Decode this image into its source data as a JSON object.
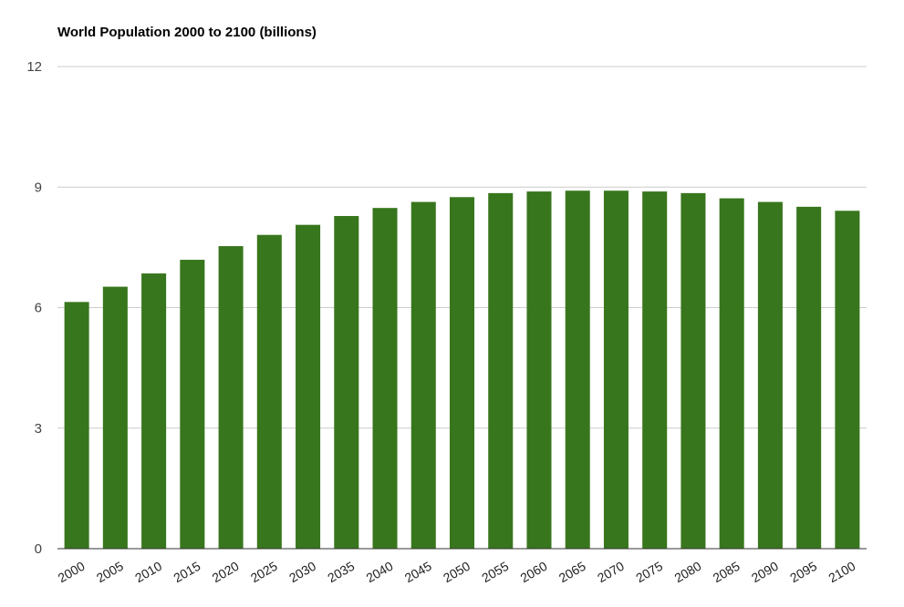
{
  "chart_data": {
    "type": "bar",
    "title": "World Population 2000 to 2100 (billions)",
    "xlabel": "",
    "ylabel": "",
    "categories": [
      "2000",
      "2005",
      "2010",
      "2015",
      "2020",
      "2025",
      "2030",
      "2035",
      "2040",
      "2045",
      "2050",
      "2055",
      "2060",
      "2065",
      "2070",
      "2075",
      "2080",
      "2085",
      "2090",
      "2095",
      "2100"
    ],
    "values": [
      6.14,
      6.52,
      6.85,
      7.19,
      7.53,
      7.81,
      8.06,
      8.28,
      8.48,
      8.63,
      8.75,
      8.85,
      8.89,
      8.91,
      8.91,
      8.89,
      8.85,
      8.72,
      8.63,
      8.51,
      8.41
    ],
    "ylim": [
      0,
      12
    ],
    "yticks": [
      "0",
      "3",
      "6",
      "9",
      "12"
    ],
    "grid": true,
    "legend": "none",
    "colors": {
      "bar": "#38761d",
      "grid": "#cccccc",
      "axis": "#333333"
    }
  }
}
